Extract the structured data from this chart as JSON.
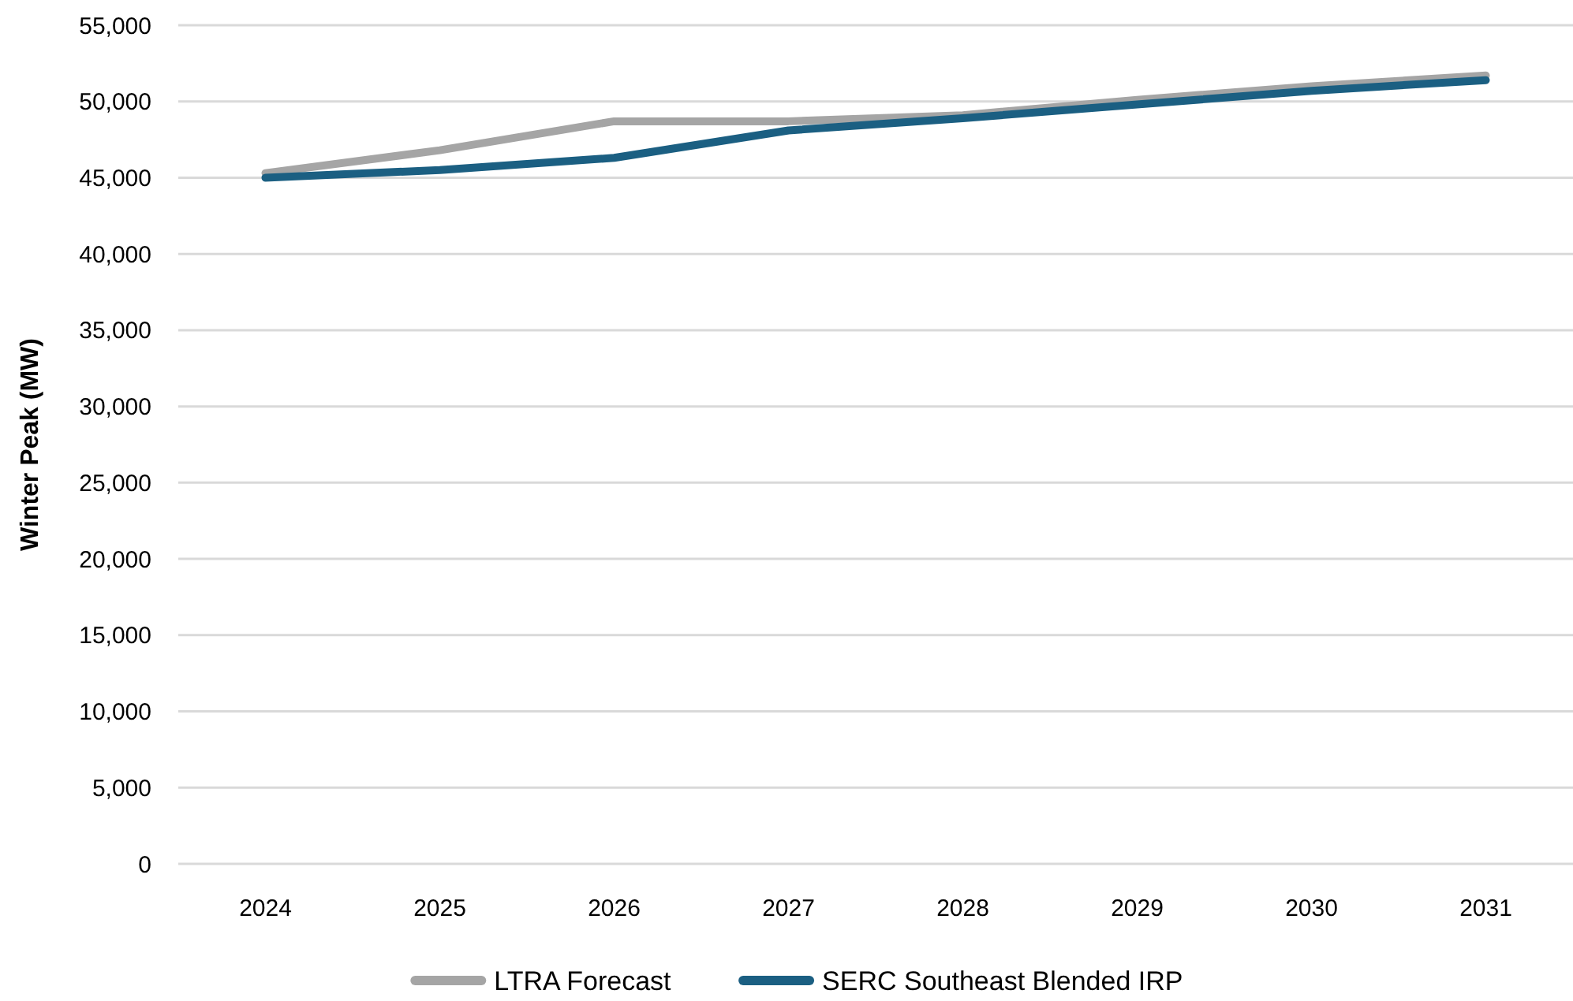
{
  "chart_data": {
    "type": "line",
    "ylabel": "Winter Peak (MW)",
    "categories": [
      "2024",
      "2025",
      "2026",
      "2027",
      "2028",
      "2029",
      "2030",
      "2031"
    ],
    "series": [
      {
        "name": "LTRA Forecast",
        "color": "#a5a5a5",
        "values": [
          45300,
          46800,
          48700,
          48700,
          49100,
          50100,
          51000,
          51700
        ]
      },
      {
        "name": "SERC Southeast Blended IRP",
        "color": "#1b5f82",
        "values": [
          45000,
          45500,
          46300,
          48100,
          48900,
          49800,
          50700,
          51400
        ]
      }
    ],
    "ylim": [
      0,
      55000
    ],
    "yticks": [
      {
        "value": 0,
        "label": "0"
      },
      {
        "value": 5000,
        "label": "5,000"
      },
      {
        "value": 10000,
        "label": "10,000"
      },
      {
        "value": 15000,
        "label": "15,000"
      },
      {
        "value": 20000,
        "label": "20,000"
      },
      {
        "value": 25000,
        "label": "25,000"
      },
      {
        "value": 30000,
        "label": "30,000"
      },
      {
        "value": 35000,
        "label": "35,000"
      },
      {
        "value": 40000,
        "label": "40,000"
      },
      {
        "value": 45000,
        "label": "45,000"
      },
      {
        "value": 50000,
        "label": "50,000"
      },
      {
        "value": 55000,
        "label": "55,000"
      }
    ],
    "grid": "y",
    "legend": "bottom",
    "marker": "none",
    "line_style": "solid"
  }
}
